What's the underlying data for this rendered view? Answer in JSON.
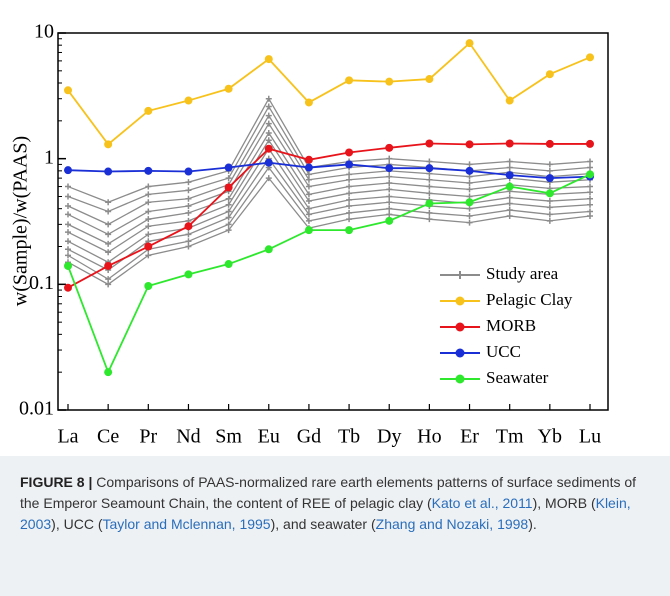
{
  "chart_data": {
    "type": "line",
    "y_label": "w(Sample)/w(PAAS)",
    "log_scale": true,
    "legend": "lower right",
    "categories": [
      "La",
      "Ce",
      "Pr",
      "Nd",
      "Sm",
      "Eu",
      "Gd",
      "Tb",
      "Dy",
      "Ho",
      "Er",
      "Tm",
      "Yb",
      "Lu"
    ],
    "ylim": [
      0.01,
      10
    ],
    "yticks": [
      0.01,
      0.1,
      1,
      10
    ],
    "series": [
      {
        "name": "Study area",
        "color": "#8c8c8c",
        "values": [
          [
            0.6,
            0.45,
            0.6,
            0.65,
            0.8,
            3.0,
            0.85,
            0.95,
            1.0,
            0.95,
            0.9,
            0.95,
            0.9,
            0.95
          ],
          [
            0.5,
            0.38,
            0.52,
            0.56,
            0.7,
            2.6,
            0.75,
            0.85,
            0.9,
            0.85,
            0.8,
            0.85,
            0.8,
            0.85
          ],
          [
            0.42,
            0.3,
            0.45,
            0.48,
            0.62,
            2.2,
            0.68,
            0.75,
            0.8,
            0.76,
            0.72,
            0.78,
            0.72,
            0.76
          ],
          [
            0.36,
            0.25,
            0.38,
            0.42,
            0.55,
            1.9,
            0.6,
            0.68,
            0.72,
            0.68,
            0.64,
            0.7,
            0.65,
            0.68
          ],
          [
            0.3,
            0.21,
            0.33,
            0.37,
            0.48,
            1.6,
            0.52,
            0.6,
            0.64,
            0.6,
            0.57,
            0.62,
            0.58,
            0.6
          ],
          [
            0.26,
            0.18,
            0.29,
            0.32,
            0.43,
            1.4,
            0.46,
            0.53,
            0.57,
            0.53,
            0.5,
            0.55,
            0.52,
            0.54
          ],
          [
            0.22,
            0.15,
            0.25,
            0.28,
            0.38,
            1.2,
            0.4,
            0.47,
            0.5,
            0.47,
            0.44,
            0.49,
            0.46,
            0.48
          ],
          [
            0.19,
            0.13,
            0.22,
            0.25,
            0.34,
            1.0,
            0.36,
            0.42,
            0.45,
            0.42,
            0.4,
            0.44,
            0.41,
            0.43
          ],
          [
            0.17,
            0.11,
            0.19,
            0.22,
            0.3,
            0.85,
            0.32,
            0.37,
            0.4,
            0.37,
            0.35,
            0.39,
            0.36,
            0.38
          ],
          [
            0.15,
            0.1,
            0.17,
            0.2,
            0.27,
            0.7,
            0.28,
            0.33,
            0.36,
            0.33,
            0.31,
            0.35,
            0.32,
            0.35
          ]
        ]
      },
      {
        "name": "Pelagic Clay",
        "color": "#f7c21b",
        "values": [
          3.5,
          1.3,
          2.4,
          2.9,
          3.6,
          6.2,
          2.8,
          4.2,
          4.1,
          4.3,
          8.3,
          2.9,
          4.7,
          6.4
        ]
      },
      {
        "name": "MORB",
        "color": "#e8141b",
        "values": [
          0.094,
          0.14,
          0.2,
          0.29,
          0.59,
          1.2,
          0.98,
          1.12,
          1.22,
          1.32,
          1.3,
          1.32,
          1.31,
          1.31
        ]
      },
      {
        "name": "UCC",
        "color": "#1a2fd6",
        "values": [
          0.81,
          0.79,
          0.8,
          0.79,
          0.85,
          0.93,
          0.85,
          0.9,
          0.84,
          0.84,
          0.8,
          0.74,
          0.7,
          0.72
        ]
      },
      {
        "name": "Seawater",
        "color": "#2ee82e",
        "values": [
          0.14,
          0.02,
          0.097,
          0.12,
          0.145,
          0.19,
          0.27,
          0.27,
          0.32,
          0.44,
          0.45,
          0.6,
          0.53,
          0.75
        ]
      }
    ]
  },
  "caption": {
    "label": "FIGURE 8 |",
    "parts": [
      {
        "text": "Comparisons of PAAS-normalized rare earth elements patterns of surface sediments of the Emperor Seamount Chain, the content of REE of pelagic clay ("
      },
      {
        "text": "Kato et al., 2011",
        "cite": true
      },
      {
        "text": "), MORB ("
      },
      {
        "text": "Klein, 2003",
        "cite": true
      },
      {
        "text": "), UCC ("
      },
      {
        "text": "Taylor and Mclennan, 1995",
        "cite": true
      },
      {
        "text": "), and seawater ("
      },
      {
        "text": "Zhang and Nozaki, 1998",
        "cite": true
      },
      {
        "text": ")."
      }
    ]
  }
}
